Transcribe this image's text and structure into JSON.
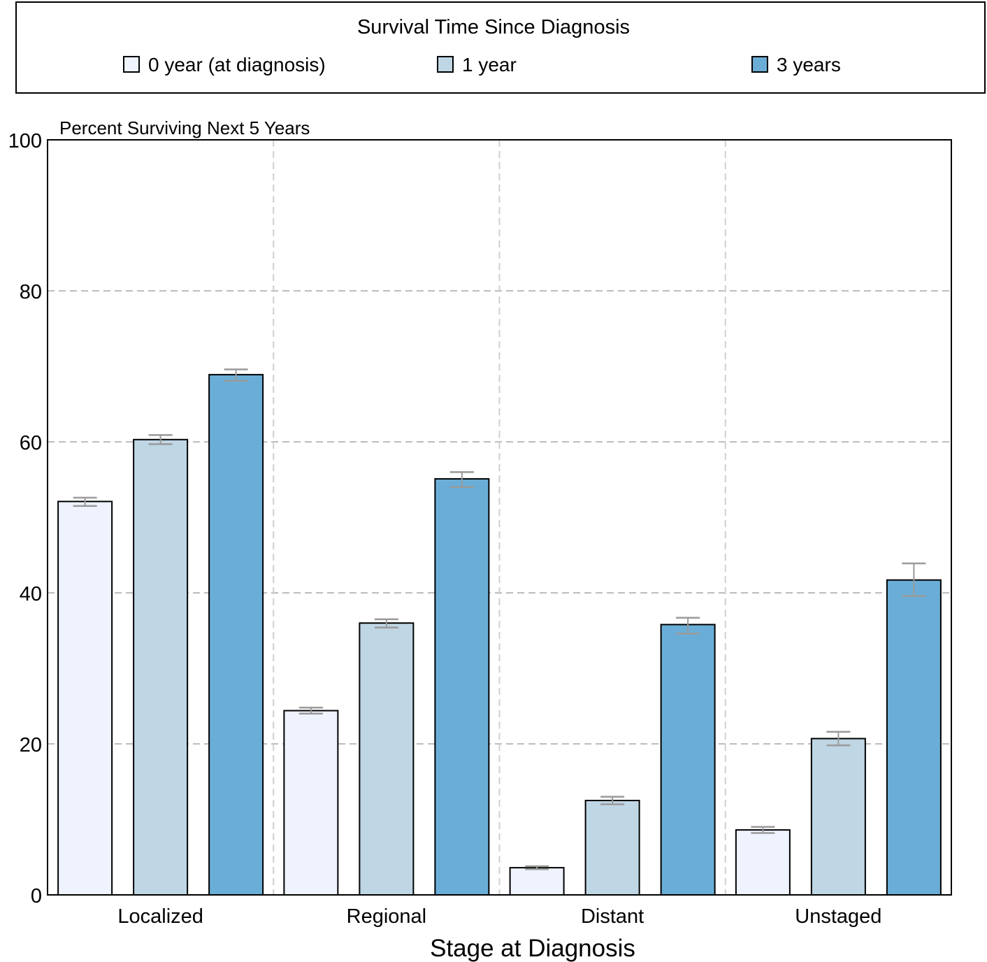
{
  "legend": {
    "title": "Survival Time Since Diagnosis",
    "placement": "top"
  },
  "chart_data": {
    "type": "bar",
    "title": "",
    "ylabel": "Percent Surviving Next 5 Years",
    "xlabel": "Stage at Diagnosis",
    "categories": [
      "Localized",
      "Regional",
      "Distant",
      "Unstaged"
    ],
    "ylim": [
      0,
      100
    ],
    "yticks": [
      0,
      20,
      40,
      60,
      80,
      100
    ],
    "grid": true,
    "series": [
      {
        "name": "0 year (at diagnosis)",
        "color": "#eef3fd",
        "values": [
          52.1,
          24.4,
          3.6,
          8.6
        ],
        "err_low": [
          51.5,
          24.0,
          3.4,
          8.2
        ],
        "err_high": [
          52.6,
          24.8,
          3.8,
          9.0
        ]
      },
      {
        "name": "1 year",
        "color": "#bfd6e5",
        "values": [
          60.3,
          36.0,
          12.5,
          20.7
        ],
        "err_low": [
          59.7,
          35.4,
          12.0,
          19.8
        ],
        "err_high": [
          60.9,
          36.5,
          13.0,
          21.6
        ]
      },
      {
        "name": "3 years",
        "color": "#6aaed7",
        "values": [
          68.9,
          55.1,
          35.8,
          41.7
        ],
        "err_low": [
          68.1,
          54.0,
          34.6,
          39.6
        ],
        "err_high": [
          69.6,
          56.0,
          36.7,
          43.9
        ]
      }
    ]
  }
}
